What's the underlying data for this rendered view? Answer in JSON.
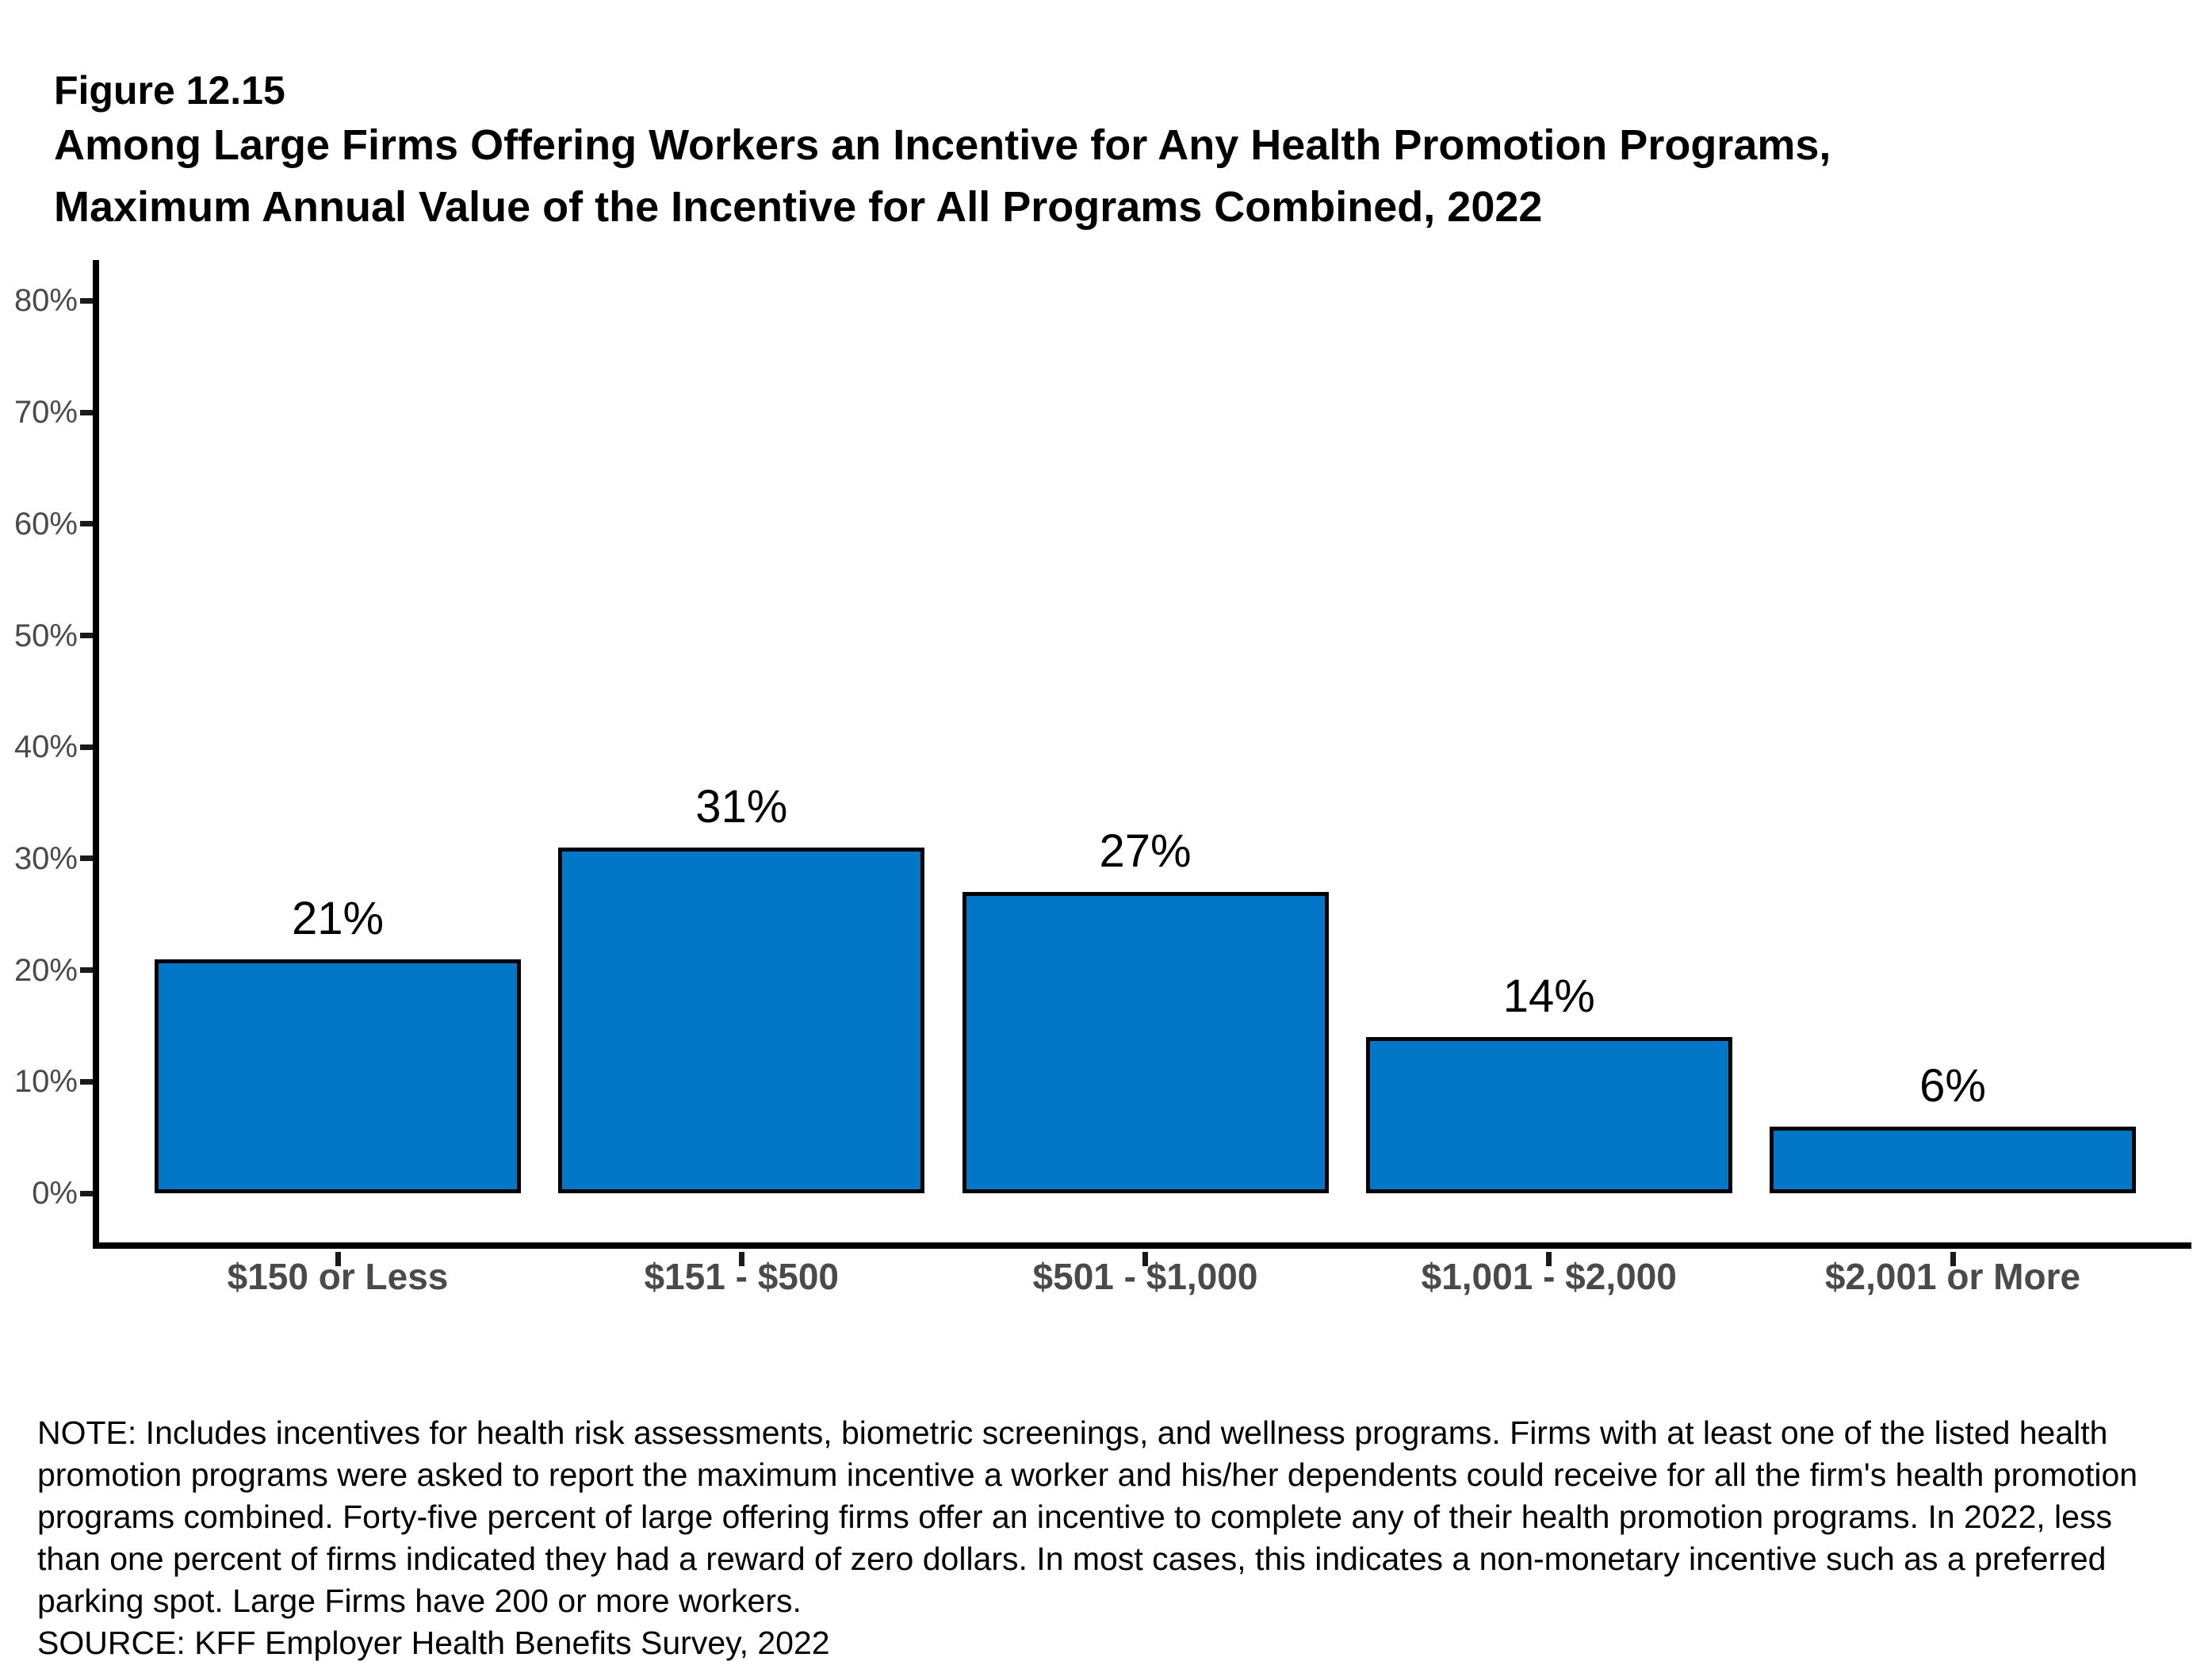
{
  "figure": {
    "label": "Figure 12.15",
    "title_lines": [
      "Among Large Firms Offering Workers an Incentive for Any Health Promotion Programs,",
      "Maximum Annual Value of the Incentive for All Programs Combined, 2022"
    ]
  },
  "chart_data": {
    "type": "bar",
    "title": "Among Large Firms Offering Workers an Incentive for Any Health Promotion Programs, Maximum Annual Value of the Incentive for All Programs Combined, 2022",
    "categories": [
      "$150 or Less",
      "$151 - $500",
      "$501 - $1,000",
      "$1,001 - $2,000",
      "$2,001 or More"
    ],
    "values": [
      21,
      31,
      27,
      14,
      6
    ],
    "value_labels": [
      "21%",
      "31%",
      "27%",
      "14%",
      "6%"
    ],
    "xlabel": "",
    "ylabel": "",
    "ylim": [
      0,
      80
    ],
    "yticks": [
      0,
      10,
      20,
      30,
      40,
      50,
      60,
      70,
      80
    ],
    "ytick_labels": [
      "0%",
      "10%",
      "20%",
      "30%",
      "40%",
      "50%",
      "60%",
      "70%",
      "80%"
    ],
    "grid": false,
    "legend_position": "none",
    "bar_color": "#0277C8",
    "bar_border_color": "#000000",
    "axis_color": "#000000",
    "tick_label_color": "#4A4A4A",
    "value_label_color": "#000000"
  },
  "notes": {
    "lines": [
      "NOTE: Includes incentives for health risk assessments, biometric screenings, and wellness programs. Firms with at least one of the listed health",
      "promotion programs were asked to report the maximum incentive a worker and his/her dependents could receive for all the firm's health promotion",
      "programs combined. Forty-five percent of large offering firms offer an incentive to complete any of their health promotion programs. In 2022, less",
      "than one percent of firms indicated they had a reward of zero dollars. In most cases, this indicates a non-monetary incentive such as a preferred",
      "parking spot. Large Firms have 200 or more workers."
    ],
    "source": "SOURCE: KFF Employer Health Benefits Survey, 2022"
  }
}
